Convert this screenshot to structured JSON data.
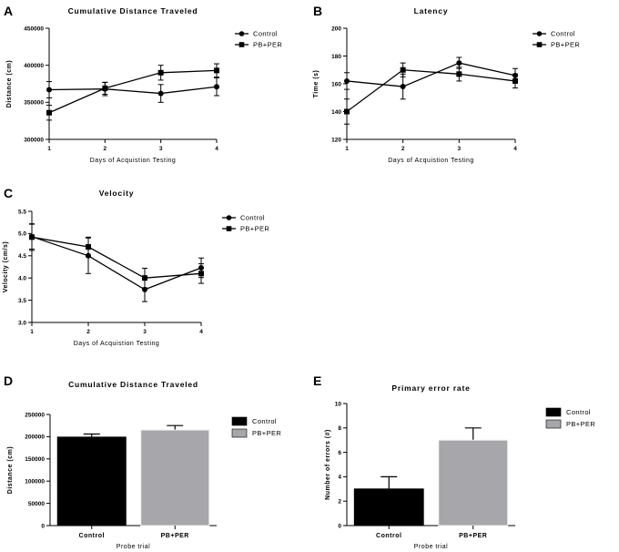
{
  "chart_data": [
    {
      "panel": "A",
      "type": "line",
      "title": "Cumulative Distance Traveled",
      "xlabel": "Days of Acquistion Testing",
      "ylabel": "Distance (cm)",
      "x": [
        1,
        2,
        3,
        4
      ],
      "xticks": [
        "1",
        "2",
        "3",
        "4"
      ],
      "ylim": [
        300000,
        450000
      ],
      "yticks": [
        "300000",
        "350000",
        "400000",
        "450000"
      ],
      "series": [
        {
          "name": "Control",
          "marker": "circle",
          "values": [
            367000,
            368000,
            362000,
            371000
          ],
          "errors": [
            11000,
            9000,
            12000,
            12000
          ]
        },
        {
          "name": "PB+PER",
          "marker": "square",
          "values": [
            336000,
            369000,
            390000,
            393000
          ],
          "errors": [
            10000,
            8000,
            10000,
            9000
          ]
        }
      ]
    },
    {
      "panel": "B",
      "type": "line",
      "title": "Latency",
      "xlabel": "Days of Acquistion Testing",
      "ylabel": "Time (s)",
      "x": [
        1,
        2,
        3,
        4
      ],
      "xticks": [
        "1",
        "2",
        "3",
        "4"
      ],
      "ylim": [
        120,
        200
      ],
      "yticks": [
        "120",
        "140",
        "160",
        "180",
        "200"
      ],
      "series": [
        {
          "name": "Control",
          "marker": "circle",
          "values": [
            162,
            158,
            175,
            166
          ],
          "errors": [
            6,
            9,
            4,
            5
          ]
        },
        {
          "name": "PB+PER",
          "marker": "square",
          "values": [
            140,
            170,
            167,
            162
          ],
          "errors": [
            9,
            5,
            5,
            5
          ]
        }
      ]
    },
    {
      "panel": "C",
      "type": "line",
      "title": "Velocity",
      "xlabel": "Days of Acquistion Testing",
      "ylabel": "Velocity (cm/s)",
      "x": [
        1,
        2,
        3,
        4
      ],
      "xticks": [
        "1",
        "2",
        "3",
        "4"
      ],
      "ylim": [
        3.0,
        5.5
      ],
      "yticks": [
        "3.0",
        "3.5",
        "4.0",
        "4.5",
        "5.0",
        "5.5"
      ],
      "series": [
        {
          "name": "Control",
          "marker": "circle",
          "values": [
            4.93,
            4.5,
            3.74,
            4.23
          ],
          "errors": [
            0.28,
            0.4,
            0.27,
            0.22
          ]
        },
        {
          "name": "PB+PER",
          "marker": "square",
          "values": [
            4.92,
            4.7,
            4.0,
            4.1
          ],
          "errors": [
            0.3,
            0.22,
            0.22,
            0.22
          ]
        }
      ]
    },
    {
      "panel": "D",
      "type": "bar",
      "title": "Cumulative Distance Traveled",
      "xlabel": "Probe trial",
      "ylabel": "Distance (cm)",
      "categories": [
        "Control",
        "PB+PER"
      ],
      "values": [
        199000,
        215000
      ],
      "errors": [
        7000,
        10000
      ],
      "colors": [
        "#000000",
        "#a6a6ab"
      ],
      "ylim": [
        0,
        250000
      ],
      "yticks": [
        "0",
        "50000",
        "100000",
        "150000",
        "200000",
        "250000"
      ],
      "legend": [
        "Control",
        "PB+PER"
      ]
    },
    {
      "panel": "E",
      "type": "bar",
      "title": "Primary error rate",
      "xlabel": "Probe trial",
      "ylabel": "Number of errors (#)",
      "categories": [
        "Control",
        "PB+PER"
      ],
      "values": [
        3,
        7
      ],
      "errors": [
        1,
        1
      ],
      "colors": [
        "#000000",
        "#a6a6ab"
      ],
      "ylim": [
        0,
        10
      ],
      "yticks": [
        "0",
        "2",
        "4",
        "6",
        "8",
        "10"
      ],
      "legend": [
        "Control",
        "PB+PER"
      ]
    }
  ]
}
